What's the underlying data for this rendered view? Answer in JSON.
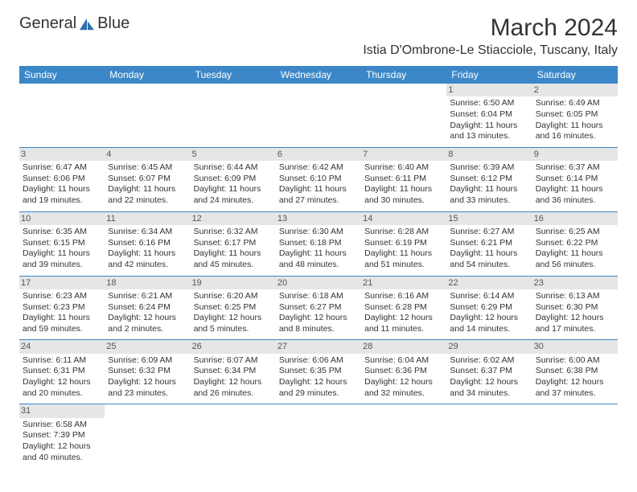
{
  "logo": {
    "text1": "General",
    "text2": "Blue"
  },
  "title": "March 2024",
  "location": "Istia D'Ombrone-Le Stiacciole, Tuscany, Italy",
  "header_bg": "#3b87c8",
  "header_text_color": "#ffffff",
  "day_bg": "#e6e6e6",
  "border_color": "#3b87c8",
  "columns": [
    "Sunday",
    "Monday",
    "Tuesday",
    "Wednesday",
    "Thursday",
    "Friday",
    "Saturday"
  ],
  "weeks": [
    [
      null,
      null,
      null,
      null,
      null,
      {
        "d": "1",
        "sunrise": "Sunrise: 6:50 AM",
        "sunset": "Sunset: 6:04 PM",
        "day1": "Daylight: 11 hours",
        "day2": "and 13 minutes."
      },
      {
        "d": "2",
        "sunrise": "Sunrise: 6:49 AM",
        "sunset": "Sunset: 6:05 PM",
        "day1": "Daylight: 11 hours",
        "day2": "and 16 minutes."
      }
    ],
    [
      {
        "d": "3",
        "sunrise": "Sunrise: 6:47 AM",
        "sunset": "Sunset: 6:06 PM",
        "day1": "Daylight: 11 hours",
        "day2": "and 19 minutes."
      },
      {
        "d": "4",
        "sunrise": "Sunrise: 6:45 AM",
        "sunset": "Sunset: 6:07 PM",
        "day1": "Daylight: 11 hours",
        "day2": "and 22 minutes."
      },
      {
        "d": "5",
        "sunrise": "Sunrise: 6:44 AM",
        "sunset": "Sunset: 6:09 PM",
        "day1": "Daylight: 11 hours",
        "day2": "and 24 minutes."
      },
      {
        "d": "6",
        "sunrise": "Sunrise: 6:42 AM",
        "sunset": "Sunset: 6:10 PM",
        "day1": "Daylight: 11 hours",
        "day2": "and 27 minutes."
      },
      {
        "d": "7",
        "sunrise": "Sunrise: 6:40 AM",
        "sunset": "Sunset: 6:11 PM",
        "day1": "Daylight: 11 hours",
        "day2": "and 30 minutes."
      },
      {
        "d": "8",
        "sunrise": "Sunrise: 6:39 AM",
        "sunset": "Sunset: 6:12 PM",
        "day1": "Daylight: 11 hours",
        "day2": "and 33 minutes."
      },
      {
        "d": "9",
        "sunrise": "Sunrise: 6:37 AM",
        "sunset": "Sunset: 6:14 PM",
        "day1": "Daylight: 11 hours",
        "day2": "and 36 minutes."
      }
    ],
    [
      {
        "d": "10",
        "sunrise": "Sunrise: 6:35 AM",
        "sunset": "Sunset: 6:15 PM",
        "day1": "Daylight: 11 hours",
        "day2": "and 39 minutes."
      },
      {
        "d": "11",
        "sunrise": "Sunrise: 6:34 AM",
        "sunset": "Sunset: 6:16 PM",
        "day1": "Daylight: 11 hours",
        "day2": "and 42 minutes."
      },
      {
        "d": "12",
        "sunrise": "Sunrise: 6:32 AM",
        "sunset": "Sunset: 6:17 PM",
        "day1": "Daylight: 11 hours",
        "day2": "and 45 minutes."
      },
      {
        "d": "13",
        "sunrise": "Sunrise: 6:30 AM",
        "sunset": "Sunset: 6:18 PM",
        "day1": "Daylight: 11 hours",
        "day2": "and 48 minutes."
      },
      {
        "d": "14",
        "sunrise": "Sunrise: 6:28 AM",
        "sunset": "Sunset: 6:19 PM",
        "day1": "Daylight: 11 hours",
        "day2": "and 51 minutes."
      },
      {
        "d": "15",
        "sunrise": "Sunrise: 6:27 AM",
        "sunset": "Sunset: 6:21 PM",
        "day1": "Daylight: 11 hours",
        "day2": "and 54 minutes."
      },
      {
        "d": "16",
        "sunrise": "Sunrise: 6:25 AM",
        "sunset": "Sunset: 6:22 PM",
        "day1": "Daylight: 11 hours",
        "day2": "and 56 minutes."
      }
    ],
    [
      {
        "d": "17",
        "sunrise": "Sunrise: 6:23 AM",
        "sunset": "Sunset: 6:23 PM",
        "day1": "Daylight: 11 hours",
        "day2": "and 59 minutes."
      },
      {
        "d": "18",
        "sunrise": "Sunrise: 6:21 AM",
        "sunset": "Sunset: 6:24 PM",
        "day1": "Daylight: 12 hours",
        "day2": "and 2 minutes."
      },
      {
        "d": "19",
        "sunrise": "Sunrise: 6:20 AM",
        "sunset": "Sunset: 6:25 PM",
        "day1": "Daylight: 12 hours",
        "day2": "and 5 minutes."
      },
      {
        "d": "20",
        "sunrise": "Sunrise: 6:18 AM",
        "sunset": "Sunset: 6:27 PM",
        "day1": "Daylight: 12 hours",
        "day2": "and 8 minutes."
      },
      {
        "d": "21",
        "sunrise": "Sunrise: 6:16 AM",
        "sunset": "Sunset: 6:28 PM",
        "day1": "Daylight: 12 hours",
        "day2": "and 11 minutes."
      },
      {
        "d": "22",
        "sunrise": "Sunrise: 6:14 AM",
        "sunset": "Sunset: 6:29 PM",
        "day1": "Daylight: 12 hours",
        "day2": "and 14 minutes."
      },
      {
        "d": "23",
        "sunrise": "Sunrise: 6:13 AM",
        "sunset": "Sunset: 6:30 PM",
        "day1": "Daylight: 12 hours",
        "day2": "and 17 minutes."
      }
    ],
    [
      {
        "d": "24",
        "sunrise": "Sunrise: 6:11 AM",
        "sunset": "Sunset: 6:31 PM",
        "day1": "Daylight: 12 hours",
        "day2": "and 20 minutes."
      },
      {
        "d": "25",
        "sunrise": "Sunrise: 6:09 AM",
        "sunset": "Sunset: 6:32 PM",
        "day1": "Daylight: 12 hours",
        "day2": "and 23 minutes."
      },
      {
        "d": "26",
        "sunrise": "Sunrise: 6:07 AM",
        "sunset": "Sunset: 6:34 PM",
        "day1": "Daylight: 12 hours",
        "day2": "and 26 minutes."
      },
      {
        "d": "27",
        "sunrise": "Sunrise: 6:06 AM",
        "sunset": "Sunset: 6:35 PM",
        "day1": "Daylight: 12 hours",
        "day2": "and 29 minutes."
      },
      {
        "d": "28",
        "sunrise": "Sunrise: 6:04 AM",
        "sunset": "Sunset: 6:36 PM",
        "day1": "Daylight: 12 hours",
        "day2": "and 32 minutes."
      },
      {
        "d": "29",
        "sunrise": "Sunrise: 6:02 AM",
        "sunset": "Sunset: 6:37 PM",
        "day1": "Daylight: 12 hours",
        "day2": "and 34 minutes."
      },
      {
        "d": "30",
        "sunrise": "Sunrise: 6:00 AM",
        "sunset": "Sunset: 6:38 PM",
        "day1": "Daylight: 12 hours",
        "day2": "and 37 minutes."
      }
    ],
    [
      {
        "d": "31",
        "sunrise": "Sunrise: 6:58 AM",
        "sunset": "Sunset: 7:39 PM",
        "day1": "Daylight: 12 hours",
        "day2": "and 40 minutes."
      },
      null,
      null,
      null,
      null,
      null,
      null
    ]
  ]
}
